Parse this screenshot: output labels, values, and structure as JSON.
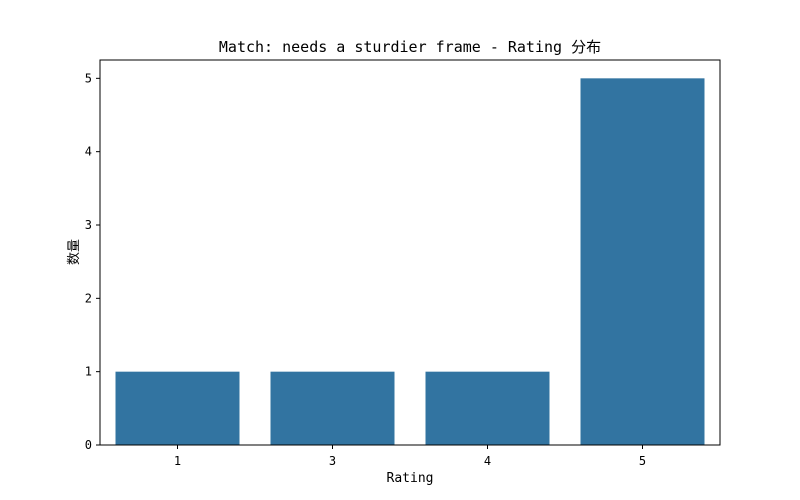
{
  "chart_data": {
    "type": "bar",
    "title": "Match: needs a sturdier frame - Rating 分布",
    "xlabel": "Rating",
    "ylabel": "数量",
    "categories": [
      "1",
      "3",
      "4",
      "5"
    ],
    "values": [
      1,
      1,
      1,
      5
    ],
    "ylim": [
      0,
      5.25
    ],
    "yticks": [
      0,
      1,
      2,
      3,
      4,
      5
    ],
    "bar_color": "#3274a1",
    "grid": false,
    "legend": "none"
  }
}
